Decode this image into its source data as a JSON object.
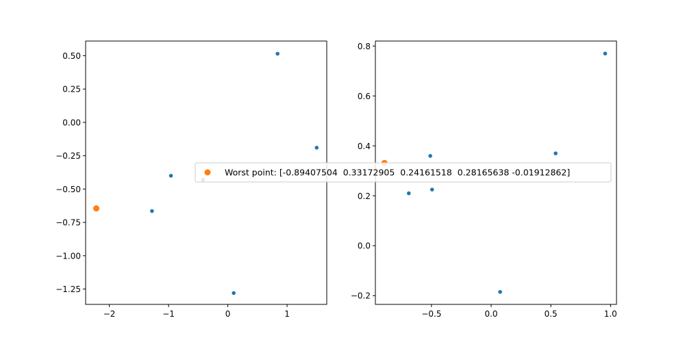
{
  "chart_data": [
    {
      "type": "scatter",
      "xlim": [
        -2.4,
        1.67
      ],
      "ylim": [
        -1.365,
        0.61
      ],
      "xticks": [
        -2,
        -1,
        0,
        1
      ],
      "yticks": [
        -1.25,
        -1.0,
        -0.75,
        -0.5,
        -0.25,
        0.0,
        0.25,
        0.5
      ],
      "xtick_labels": [
        "−2",
        "−1",
        "0",
        "1"
      ],
      "ytick_labels": [
        "−1.25",
        "−1.00",
        "−0.75",
        "−0.50",
        "−0.25",
        "0.00",
        "0.25",
        "0.50"
      ],
      "series": [
        {
          "color": "#1f77b4",
          "points": [
            [
              0.84,
              0.515
            ],
            [
              1.5,
              -0.19
            ],
            [
              -0.96,
              -0.4
            ],
            [
              -0.42,
              -0.43
            ],
            [
              -1.28,
              -0.665
            ],
            [
              0.1,
              -1.28
            ]
          ]
        },
        {
          "color": "#ff7f0e",
          "points": [
            [
              -2.22,
              -0.645
            ]
          ]
        }
      ]
    },
    {
      "type": "scatter",
      "xlim": [
        -0.97,
        1.05
      ],
      "ylim": [
        -0.235,
        0.82
      ],
      "xticks": [
        -0.5,
        0.0,
        0.5,
        1.0
      ],
      "yticks": [
        -0.2,
        0.0,
        0.2,
        0.4,
        0.6,
        0.8
      ],
      "xtick_labels": [
        "−0.5",
        "0.0",
        "0.5",
        "1.0"
      ],
      "ytick_labels": [
        "−0.2",
        "0.0",
        "0.2",
        "0.4",
        "0.6",
        "0.8"
      ],
      "series": [
        {
          "color": "#1f77b4",
          "points": [
            [
              0.955,
              0.77
            ],
            [
              0.54,
              0.37
            ],
            [
              -0.51,
              0.36
            ],
            [
              -0.69,
              0.21
            ],
            [
              -0.495,
              0.225
            ],
            [
              0.075,
              -0.185
            ]
          ]
        },
        {
          "color": "#ff7f0e",
          "points": [
            [
              -0.894,
              0.3317
            ]
          ]
        }
      ]
    }
  ],
  "legend": {
    "label": "Worst point: [-0.89407504  0.33172905  0.24161518  0.28165638 -0.01912862]",
    "color": "#ff7f0e"
  }
}
